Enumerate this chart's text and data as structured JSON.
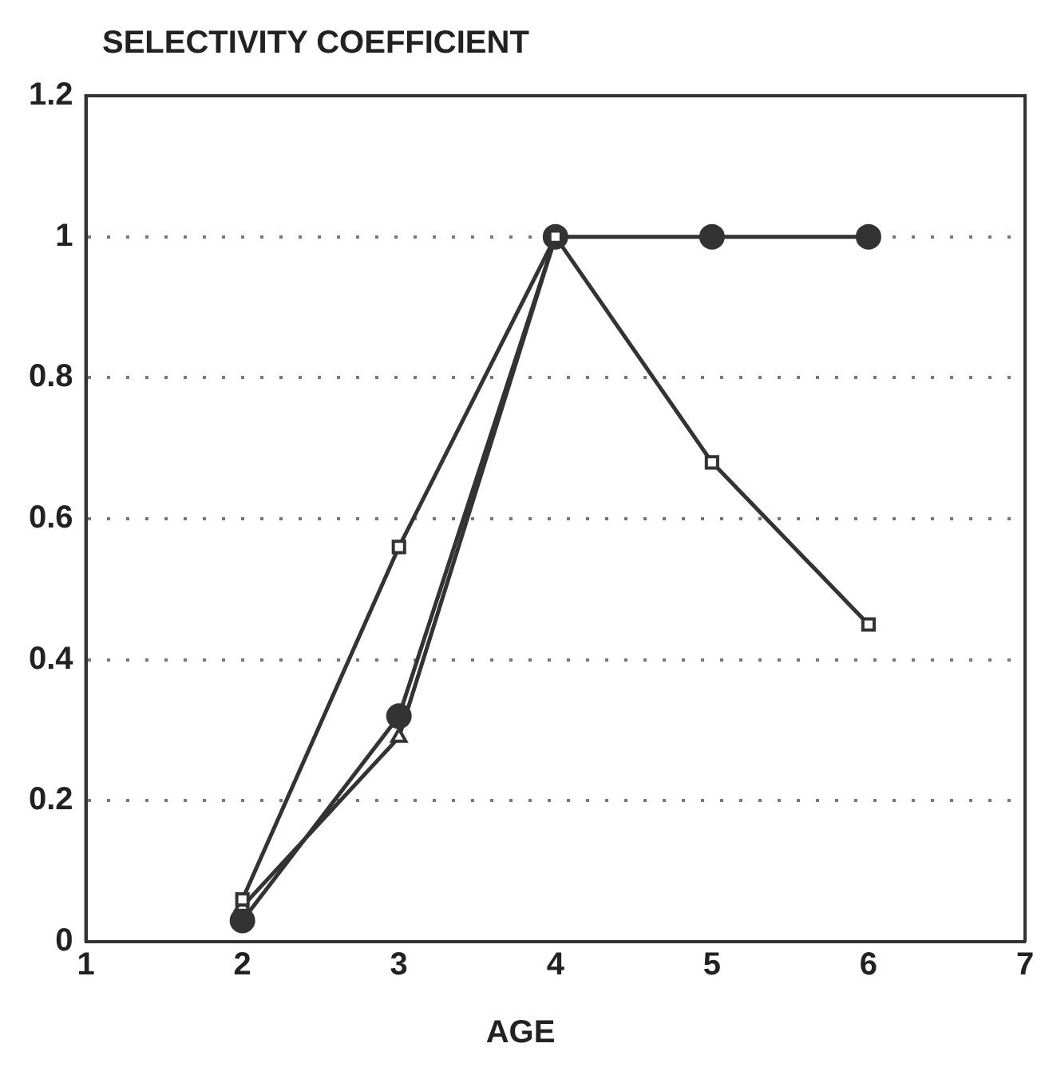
{
  "chart_data": {
    "type": "line",
    "title": "SELECTIVITY COEFFICIENT",
    "xlabel": "AGE",
    "x": [
      2,
      3,
      4,
      5,
      6
    ],
    "series": [
      {
        "color": "#333333",
        "marker": "square",
        "values": [
          0.06,
          0.56,
          1,
          0.68,
          0.45
        ]
      },
      {
        "color": "#333333",
        "marker": "triangle",
        "values": [
          0.05,
          0.29,
          1,
          null,
          null
        ]
      },
      {
        "color": "#333333",
        "marker": "circle",
        "values": [
          0.03,
          0.32,
          1,
          1,
          1
        ]
      }
    ],
    "xlim": [
      1,
      7
    ],
    "xticks": [
      1,
      2,
      3,
      4,
      5,
      6,
      7
    ],
    "ylim": [
      0,
      1.2
    ],
    "yticks": [
      0,
      0.2,
      0.4,
      0.6,
      0.8,
      1,
      1.2
    ],
    "grid": "y",
    "line_style": "solid",
    "legend": false
  }
}
